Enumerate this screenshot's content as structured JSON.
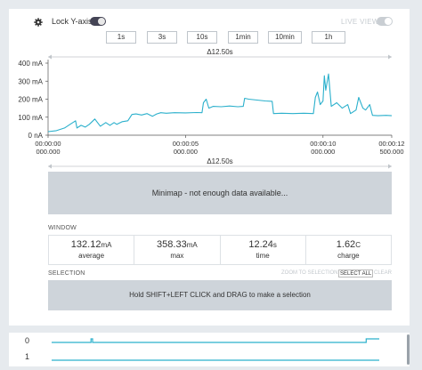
{
  "toolbar": {
    "gear_icon": "gear-icon",
    "lock_label": "Lock Y-axis",
    "live_label": "LIVE VIEW",
    "lock_enabled": true,
    "live_enabled": false
  },
  "ranges": [
    "1s",
    "3s",
    "10s",
    "1min",
    "10min",
    "1h"
  ],
  "chart_data": {
    "type": "line",
    "span_label": "Δ12.50s",
    "y_ticks": [
      "400 mA",
      "300 mA",
      "200 mA",
      "100 mA",
      "0 nA"
    ],
    "ylim": [
      0,
      400
    ],
    "x_ticks": [
      {
        "time": "00:00:00",
        "sub": "000.000"
      },
      {
        "time": "00:00:05",
        "sub": "000.000"
      },
      {
        "time": "00:00:10",
        "sub": "000.000"
      },
      {
        "time": "00:00:12",
        "sub": "500.000"
      }
    ],
    "xlim": [
      0,
      12.5
    ],
    "series": [
      {
        "color": "#2bb0cc",
        "points": [
          [
            0.0,
            20
          ],
          [
            0.3,
            25
          ],
          [
            0.6,
            40
          ],
          [
            0.8,
            60
          ],
          [
            1.0,
            80
          ],
          [
            1.05,
            40
          ],
          [
            1.2,
            55
          ],
          [
            1.35,
            45
          ],
          [
            1.5,
            60
          ],
          [
            1.7,
            90
          ],
          [
            1.9,
            50
          ],
          [
            2.1,
            70
          ],
          [
            2.25,
            55
          ],
          [
            2.4,
            70
          ],
          [
            2.5,
            60
          ],
          [
            2.7,
            75
          ],
          [
            2.9,
            80
          ],
          [
            3.05,
            115
          ],
          [
            3.2,
            118
          ],
          [
            3.4,
            112
          ],
          [
            3.6,
            120
          ],
          [
            3.8,
            105
          ],
          [
            3.95,
            118
          ],
          [
            4.1,
            125
          ],
          [
            4.3,
            122
          ],
          [
            4.6,
            125
          ],
          [
            5.0,
            124
          ],
          [
            5.4,
            126
          ],
          [
            5.6,
            125
          ],
          [
            5.65,
            180
          ],
          [
            5.75,
            200
          ],
          [
            5.85,
            150
          ],
          [
            6.0,
            160
          ],
          [
            6.3,
            158
          ],
          [
            6.6,
            162
          ],
          [
            6.9,
            158
          ],
          [
            7.1,
            160
          ],
          [
            7.15,
            205
          ],
          [
            7.3,
            200
          ],
          [
            7.6,
            195
          ],
          [
            7.9,
            190
          ],
          [
            8.15,
            188
          ],
          [
            8.2,
            120
          ],
          [
            8.5,
            122
          ],
          [
            8.9,
            120
          ],
          [
            9.3,
            122
          ],
          [
            9.65,
            120
          ],
          [
            9.72,
            210
          ],
          [
            9.8,
            240
          ],
          [
            9.9,
            170
          ],
          [
            10.0,
            190
          ],
          [
            10.05,
            330
          ],
          [
            10.1,
            250
          ],
          [
            10.2,
            340
          ],
          [
            10.3,
            160
          ],
          [
            10.5,
            180
          ],
          [
            10.7,
            150
          ],
          [
            10.9,
            170
          ],
          [
            11.0,
            120
          ],
          [
            11.2,
            140
          ],
          [
            11.3,
            210
          ],
          [
            11.45,
            150
          ],
          [
            11.55,
            140
          ],
          [
            11.7,
            170
          ],
          [
            11.8,
            110
          ],
          [
            12.0,
            108
          ],
          [
            12.3,
            110
          ],
          [
            12.5,
            108
          ]
        ]
      }
    ]
  },
  "minimap": {
    "span_label": "Δ12.50s",
    "message": "Minimap - not enough data available..."
  },
  "window": {
    "title": "WINDOW",
    "stats": [
      {
        "value": "132.12",
        "unit": "mA",
        "label": "average"
      },
      {
        "value": "358.33",
        "unit": "mA",
        "label": "max"
      },
      {
        "value": "12.24",
        "unit": "s",
        "label": "time"
      },
      {
        "value": "1.62",
        "unit": "C",
        "label": "charge"
      }
    ]
  },
  "selection": {
    "title": "SELECTION",
    "zoom_label": "ZOOM TO SELECTION",
    "select_all_label": "SELECT ALL",
    "clear_label": "CLEAR",
    "message": "Hold SHIFT+LEFT CLICK and DRAG to make a selection"
  },
  "channels": [
    {
      "label": "0",
      "trace": [
        [
          0,
          0
        ],
        [
          0.12,
          0
        ],
        [
          0.12,
          1
        ],
        [
          0.125,
          1
        ],
        [
          0.125,
          0
        ],
        [
          0.96,
          0
        ],
        [
          0.96,
          1
        ],
        [
          1,
          1
        ]
      ]
    },
    {
      "label": "1",
      "trace": [
        [
          0,
          0
        ],
        [
          1,
          0
        ]
      ]
    }
  ],
  "colors": {
    "accent": "#2bb0cc",
    "panel": "#ffffff",
    "background": "#e6eaee",
    "muted": "#ced4da"
  }
}
